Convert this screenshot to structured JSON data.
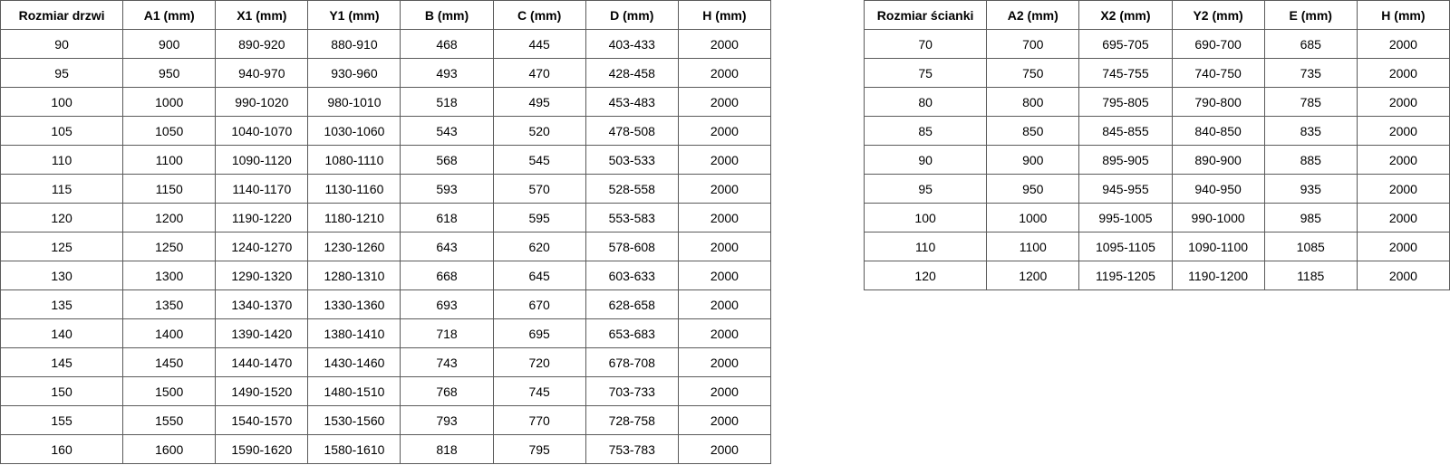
{
  "doors_table": {
    "headers": [
      "Rozmiar drzwi",
      "A1 (mm)",
      "X1 (mm)",
      "Y1 (mm)",
      "B (mm)",
      "C (mm)",
      "D (mm)",
      "H (mm)"
    ],
    "rows": [
      [
        "90",
        "900",
        "890-920",
        "880-910",
        "468",
        "445",
        "403-433",
        "2000"
      ],
      [
        "95",
        "950",
        "940-970",
        "930-960",
        "493",
        "470",
        "428-458",
        "2000"
      ],
      [
        "100",
        "1000",
        "990-1020",
        "980-1010",
        "518",
        "495",
        "453-483",
        "2000"
      ],
      [
        "105",
        "1050",
        "1040-1070",
        "1030-1060",
        "543",
        "520",
        "478-508",
        "2000"
      ],
      [
        "110",
        "1100",
        "1090-1120",
        "1080-1110",
        "568",
        "545",
        "503-533",
        "2000"
      ],
      [
        "115",
        "1150",
        "1140-1170",
        "1130-1160",
        "593",
        "570",
        "528-558",
        "2000"
      ],
      [
        "120",
        "1200",
        "1190-1220",
        "1180-1210",
        "618",
        "595",
        "553-583",
        "2000"
      ],
      [
        "125",
        "1250",
        "1240-1270",
        "1230-1260",
        "643",
        "620",
        "578-608",
        "2000"
      ],
      [
        "130",
        "1300",
        "1290-1320",
        "1280-1310",
        "668",
        "645",
        "603-633",
        "2000"
      ],
      [
        "135",
        "1350",
        "1340-1370",
        "1330-1360",
        "693",
        "670",
        "628-658",
        "2000"
      ],
      [
        "140",
        "1400",
        "1390-1420",
        "1380-1410",
        "718",
        "695",
        "653-683",
        "2000"
      ],
      [
        "145",
        "1450",
        "1440-1470",
        "1430-1460",
        "743",
        "720",
        "678-708",
        "2000"
      ],
      [
        "150",
        "1500",
        "1490-1520",
        "1480-1510",
        "768",
        "745",
        "703-733",
        "2000"
      ],
      [
        "155",
        "1550",
        "1540-1570",
        "1530-1560",
        "793",
        "770",
        "728-758",
        "2000"
      ],
      [
        "160",
        "1600",
        "1590-1620",
        "1580-1610",
        "818",
        "795",
        "753-783",
        "2000"
      ]
    ]
  },
  "wall_table": {
    "headers": [
      "Rozmiar ścianki",
      "A2 (mm)",
      "X2 (mm)",
      "Y2 (mm)",
      "E (mm)",
      "H (mm)"
    ],
    "rows": [
      [
        "70",
        "700",
        "695-705",
        "690-700",
        "685",
        "2000"
      ],
      [
        "75",
        "750",
        "745-755",
        "740-750",
        "735",
        "2000"
      ],
      [
        "80",
        "800",
        "795-805",
        "790-800",
        "785",
        "2000"
      ],
      [
        "85",
        "850",
        "845-855",
        "840-850",
        "835",
        "2000"
      ],
      [
        "90",
        "900",
        "895-905",
        "890-900",
        "885",
        "2000"
      ],
      [
        "95",
        "950",
        "945-955",
        "940-950",
        "935",
        "2000"
      ],
      [
        "100",
        "1000",
        "995-1005",
        "990-1000",
        "985",
        "2000"
      ],
      [
        "110",
        "1100",
        "1095-1105",
        "1090-1100",
        "1085",
        "2000"
      ],
      [
        "120",
        "1200",
        "1195-1205",
        "1190-1200",
        "1185",
        "2000"
      ]
    ]
  }
}
